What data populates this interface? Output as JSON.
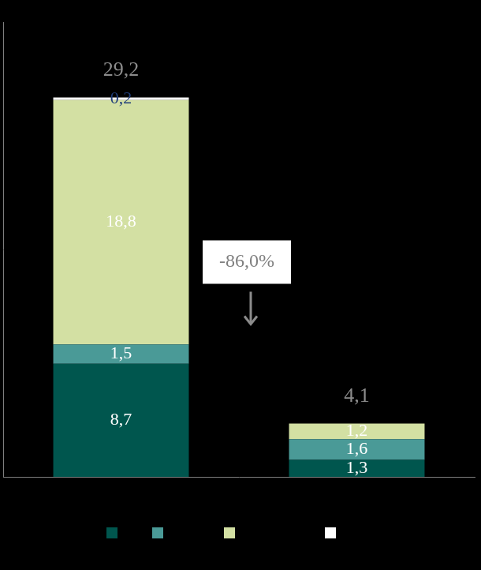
{
  "chart_data": {
    "type": "bar",
    "categories": [
      null,
      null
    ],
    "stacked": true,
    "data_labels": true,
    "grid": false,
    "tick_labels": false,
    "legend": "bottom",
    "ylim": [
      0,
      35
    ],
    "series": [
      {
        "color": "#00564e",
        "values": [
          8.7,
          1.3
        ],
        "value_labels": [
          "8,7",
          "1,3"
        ]
      },
      {
        "color": "#4a9a97",
        "values": [
          1.5,
          1.6
        ],
        "value_labels": [
          "1,5",
          "1,6"
        ]
      },
      {
        "color": "#d3e0a3",
        "values": [
          18.8,
          1.2
        ],
        "value_labels": [
          "18,8",
          "1,2"
        ]
      },
      {
        "color": "#ffffff",
        "values": [
          0.2,
          null
        ],
        "value_labels": [
          "0,2",
          null
        ]
      }
    ],
    "totals": {
      "values": [
        29.2,
        4.1
      ],
      "value_labels": [
        "29,2",
        "4,1"
      ]
    },
    "annotations": [
      "-86,0%"
    ]
  }
}
